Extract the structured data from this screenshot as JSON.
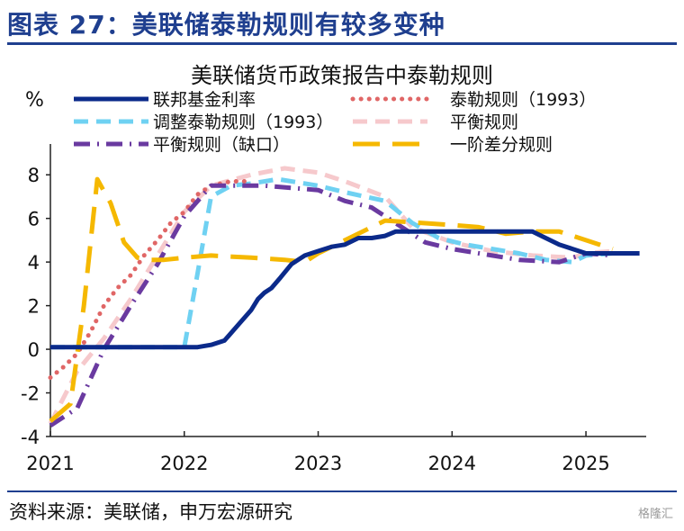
{
  "figure": {
    "title": "图表 27：美联储泰勒规则有较多变种",
    "source": "资料来源：美联储，申万宏源研究",
    "watermark": "格隆汇"
  },
  "colors": {
    "title": "#1f3f8f",
    "rule": "#1f3f8f"
  },
  "chart_data": {
    "type": "line",
    "title": "美联储货币政策报告中泰勒规则",
    "ylabel": "%",
    "xlabel": "",
    "xlim": [
      2021.0,
      2025.45
    ],
    "ylim": [
      -4,
      9
    ],
    "yticks": [
      -4,
      -2,
      0,
      2,
      4,
      6,
      8
    ],
    "xticks": [
      2021,
      2022,
      2023,
      2024,
      2025
    ],
    "xtick_labels": [
      "2021",
      "2022",
      "2023",
      "2024",
      "2025"
    ],
    "grid": false,
    "legend_position": "top",
    "series": [
      {
        "name": "联邦基金利率",
        "color": "#0b2a8a",
        "style": "solid",
        "width": 5,
        "x": [
          2021.0,
          2022.1,
          2022.2,
          2022.3,
          2022.4,
          2022.5,
          2022.55,
          2022.6,
          2022.65,
          2022.72,
          2022.8,
          2022.85,
          2022.9,
          2023.0,
          2023.1,
          2023.2,
          2023.3,
          2023.4,
          2023.5,
          2023.58,
          2023.65,
          2023.75,
          2024.0,
          2024.3,
          2024.6,
          2024.7,
          2024.8,
          2024.9,
          2025.0,
          2025.1,
          2025.4
        ],
        "y": [
          0.1,
          0.1,
          0.2,
          0.4,
          1.1,
          1.8,
          2.3,
          2.6,
          2.8,
          3.3,
          3.9,
          4.1,
          4.3,
          4.5,
          4.7,
          4.8,
          5.1,
          5.1,
          5.2,
          5.4,
          5.4,
          5.4,
          5.4,
          5.4,
          5.4,
          5.1,
          4.8,
          4.6,
          4.4,
          4.4,
          4.4
        ]
      },
      {
        "name": "泰勒规则（1993）",
        "color": "#e06666",
        "style": "dotted",
        "width": 4,
        "x": [
          2021.0,
          2021.1,
          2021.2,
          2021.3,
          2021.4,
          2021.5,
          2021.6,
          2021.7,
          2021.8,
          2021.9,
          2022.0,
          2022.1,
          2022.2,
          2022.35,
          2022.5
        ],
        "y": [
          -1.3,
          -0.8,
          -0.2,
          0.8,
          2.0,
          2.8,
          3.4,
          4.3,
          5.0,
          5.8,
          6.3,
          7.1,
          7.5,
          7.7,
          7.7
        ]
      },
      {
        "name": "调整泰勒规则（1993）",
        "color": "#6fd1f2",
        "style": "dashed",
        "width": 5,
        "x": [
          2021.0,
          2021.5,
          2022.0,
          2022.1,
          2022.2,
          2022.35,
          2022.5,
          2022.7,
          2023.0,
          2023.2,
          2023.5,
          2023.7,
          2023.9,
          2024.1,
          2024.3,
          2024.5,
          2024.7,
          2024.9,
          2025.0,
          2025.2
        ],
        "y": [
          0.1,
          0.1,
          0.1,
          3.5,
          7.0,
          7.5,
          7.6,
          7.8,
          7.5,
          7.2,
          6.8,
          5.8,
          5.1,
          4.8,
          4.6,
          4.4,
          4.1,
          4.0,
          4.3,
          4.4
        ]
      },
      {
        "name": "平衡规则",
        "color": "#f6c9cc",
        "style": "dashed",
        "width": 5,
        "x": [
          2021.0,
          2021.2,
          2021.4,
          2021.6,
          2021.8,
          2022.0,
          2022.2,
          2022.5,
          2022.75,
          2023.0,
          2023.2,
          2023.5,
          2023.7,
          2024.0,
          2024.3,
          2024.6,
          2024.9,
          2025.0,
          2025.2
        ],
        "y": [
          -3.4,
          -1.0,
          0.5,
          2.3,
          4.3,
          6.3,
          7.5,
          8.0,
          8.3,
          8.1,
          7.7,
          7.0,
          5.6,
          4.9,
          4.5,
          4.3,
          4.2,
          4.4,
          4.5
        ]
      },
      {
        "name": "平衡规则（缺口）",
        "color": "#6a3aa0",
        "style": "dashdot",
        "width": 5,
        "x": [
          2021.0,
          2021.2,
          2021.4,
          2021.6,
          2021.8,
          2022.0,
          2022.2,
          2022.4,
          2022.6,
          2022.8,
          2023.0,
          2023.2,
          2023.4,
          2023.6,
          2023.8,
          2024.0,
          2024.3,
          2024.5,
          2024.8,
          2025.0,
          2025.2
        ],
        "y": [
          -3.5,
          -2.7,
          0.0,
          2.0,
          3.9,
          6.1,
          7.5,
          7.5,
          7.5,
          7.4,
          7.3,
          6.8,
          6.5,
          5.7,
          4.9,
          4.6,
          4.3,
          4.1,
          4.0,
          4.4,
          4.3
        ]
      },
      {
        "name": "一阶差分规则",
        "color": "#f5b800",
        "style": "longdash",
        "width": 5,
        "x": [
          2021.0,
          2021.15,
          2021.25,
          2021.35,
          2021.45,
          2021.55,
          2021.65,
          2021.75,
          2021.85,
          2022.0,
          2022.2,
          2022.5,
          2022.75,
          2022.9,
          2023.0,
          2023.2,
          2023.5,
          2023.75,
          2024.0,
          2024.2,
          2024.4,
          2024.6,
          2024.8,
          2025.0,
          2025.2
        ],
        "y": [
          -3.3,
          -2.5,
          2.0,
          7.8,
          6.7,
          4.9,
          4.2,
          4.1,
          4.1,
          4.2,
          4.3,
          4.2,
          4.1,
          4.0,
          4.4,
          5.0,
          5.9,
          5.8,
          5.7,
          5.6,
          5.3,
          5.4,
          5.4,
          5.0,
          4.6
        ]
      }
    ]
  }
}
